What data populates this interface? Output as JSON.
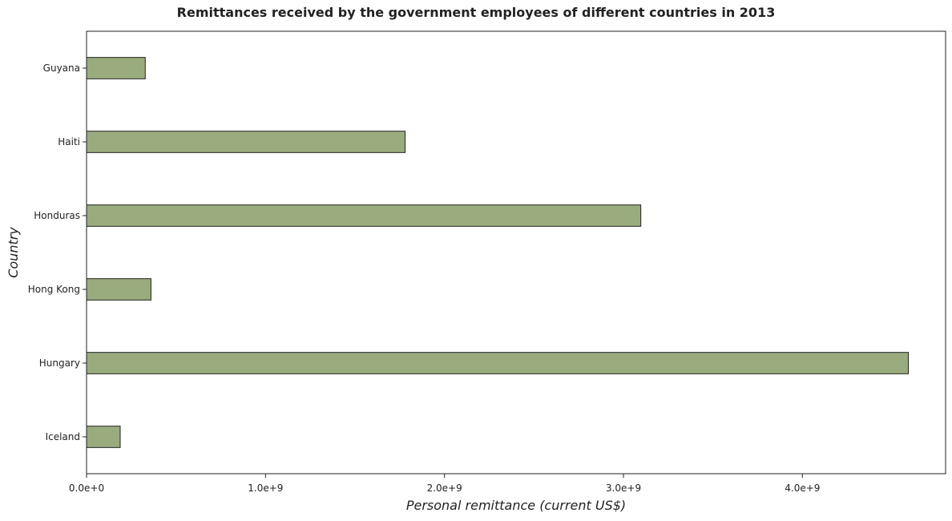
{
  "chart_data": {
    "type": "bar",
    "orientation": "horizontal",
    "title": "Remittances received by the government employees of different countries in 2013",
    "xlabel": "Personal remittance (current US$)",
    "ylabel": "Country",
    "categories": [
      "Guyana",
      "Haiti",
      "Honduras",
      "Hong Kong",
      "Hungary",
      "Iceland"
    ],
    "values": [
      328000000,
      1780000000,
      3097000000,
      360000000,
      4592000000,
      188000000
    ],
    "xlim": [
      0,
      4800000000
    ],
    "xticks": [
      0,
      1000000000,
      2000000000,
      3000000000,
      4000000000
    ],
    "xtick_labels": [
      "0.0e+0",
      "1.0e+9",
      "2.0e+9",
      "3.0e+9",
      "4.0e+9"
    ],
    "grid": false,
    "bar_color": "#9aab7e",
    "bar_edge_color": "#222222"
  }
}
